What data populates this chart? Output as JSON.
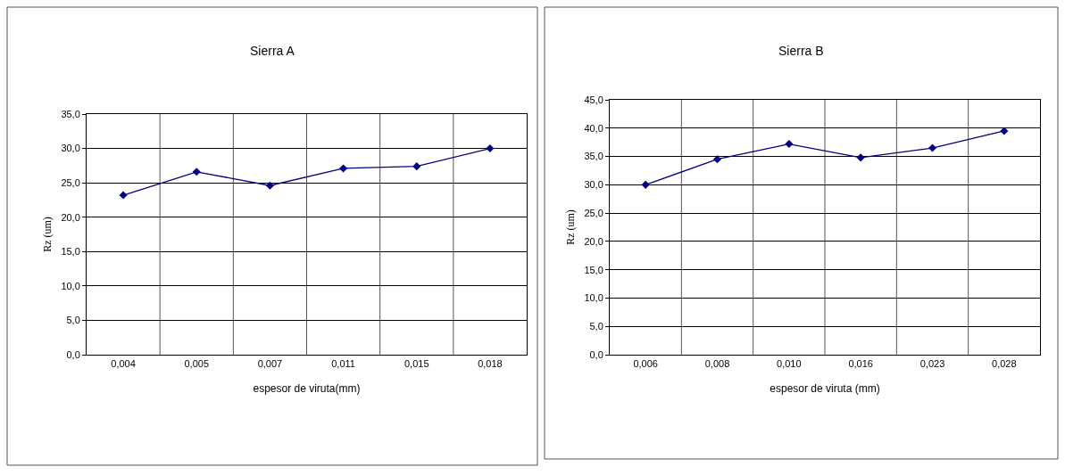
{
  "chart_data": [
    {
      "type": "line",
      "title": "Sierra A",
      "xlabel": "espesor de viruta(mm)",
      "ylabel": "Rz (um)",
      "categories": [
        "0,004",
        "0,005",
        "0,007",
        "0,011",
        "0,015",
        "0,018"
      ],
      "series": [
        {
          "color": "#000080",
          "values": [
            23.2,
            26.6,
            24.6,
            27.1,
            27.4,
            30.0
          ]
        }
      ],
      "ylim": [
        0,
        35
      ],
      "yticks": [
        {
          "value": 0,
          "label": "0,0"
        },
        {
          "value": 5,
          "label": "5,0"
        },
        {
          "value": 10,
          "label": "10,0"
        },
        {
          "value": 15,
          "label": "15,0"
        },
        {
          "value": 20,
          "label": "20,0"
        },
        {
          "value": 25,
          "label": "25,0"
        },
        {
          "value": 30,
          "label": "30,0"
        },
        {
          "value": 35,
          "label": "35,0"
        }
      ],
      "grid": true,
      "marker": "diamond",
      "line_style": "solid"
    },
    {
      "type": "line",
      "title": "Sierra B",
      "xlabel": "espesor de viruta (mm)",
      "ylabel": "Rz (um)",
      "categories": [
        "0,006",
        "0,008",
        "0,010",
        "0,016",
        "0,023",
        "0,028"
      ],
      "series": [
        {
          "color": "#000080",
          "values": [
            30.0,
            34.5,
            37.2,
            34.8,
            36.5,
            39.5
          ]
        }
      ],
      "ylim": [
        0,
        45
      ],
      "yticks": [
        {
          "value": 0,
          "label": "0,0"
        },
        {
          "value": 5,
          "label": "5,0"
        },
        {
          "value": 10,
          "label": "10,0"
        },
        {
          "value": 15,
          "label": "15,0"
        },
        {
          "value": 20,
          "label": "20,0"
        },
        {
          "value": 25,
          "label": "25,0"
        },
        {
          "value": 30,
          "label": "30,0"
        },
        {
          "value": 35,
          "label": "35,0"
        },
        {
          "value": 40,
          "label": "40,0"
        },
        {
          "value": 45,
          "label": "45,0"
        }
      ],
      "grid": true,
      "marker": "diamond",
      "line_style": "solid"
    }
  ]
}
